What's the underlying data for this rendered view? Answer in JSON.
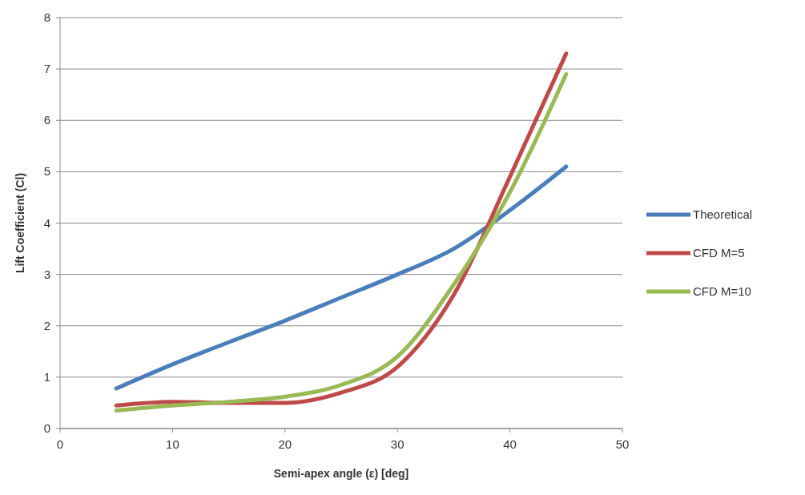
{
  "chart_data": {
    "type": "line",
    "xlabel": "Semi-apex angle (ε) [deg]",
    "ylabel": "Lift Coefficient (Cl)",
    "x": [
      5,
      10,
      15,
      20,
      25,
      30,
      35,
      40,
      45
    ],
    "series": [
      {
        "name": "Theoretical",
        "color": "#4a7ebb",
        "values": [
          0.78,
          1.25,
          1.68,
          2.1,
          2.55,
          3.0,
          3.5,
          4.25,
          5.1
        ]
      },
      {
        "name": "CFD M=5",
        "color": "#be4b48",
        "values": [
          0.45,
          0.52,
          0.5,
          0.5,
          0.7,
          1.2,
          2.6,
          4.9,
          7.3
        ]
      },
      {
        "name": "CFD M=10",
        "color": "#98b954",
        "values": [
          0.35,
          0.45,
          0.52,
          0.62,
          0.85,
          1.4,
          2.8,
          4.6,
          6.9
        ]
      }
    ],
    "xlim": [
      0,
      50
    ],
    "xticks": [
      0,
      10,
      20,
      30,
      40,
      50
    ],
    "ylim": [
      0,
      8
    ],
    "yticks": [
      0,
      1,
      2,
      3,
      4,
      5,
      6,
      7,
      8
    ],
    "grid": "y",
    "legend": "right",
    "marker": "none",
    "line_style": "solid"
  }
}
